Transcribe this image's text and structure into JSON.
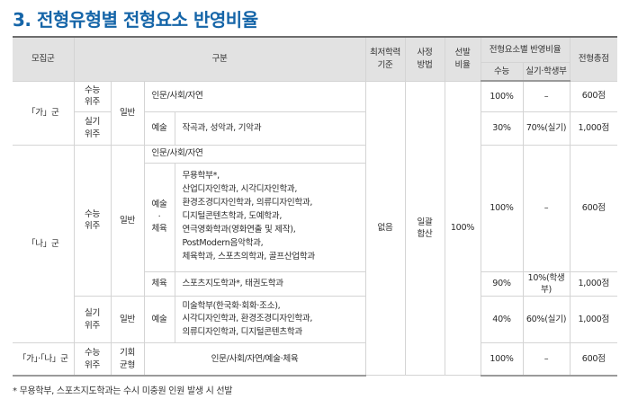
{
  "heading": "3. 전형유형별 전형요소 반영비율",
  "header": {
    "recruit_group": "모집군",
    "category": "구분",
    "min_standard": [
      "최저학력",
      "기준"
    ],
    "assessment": [
      "사정",
      "방법"
    ],
    "selection_ratio": [
      "선발",
      "비율"
    ],
    "element_ratio": "전형요소별 반영비율",
    "suneung": "수능",
    "practical": "실기·학생부",
    "total": "전형총점"
  },
  "ga": {
    "group": "「가」군",
    "suneung_type": [
      "수능",
      "위주"
    ],
    "practical_type": [
      "실기",
      "위주"
    ],
    "general": "일반",
    "humanities": "인문/사회/자연",
    "humanities_suneung": "100%",
    "humanities_practical": "–",
    "humanities_total": "600점",
    "arts_label": "예술",
    "arts_depts": "작곡과, 성악과, 기악과",
    "arts_suneung": "30%",
    "arts_practical": "70%(실기)",
    "arts_total": "1,000점"
  },
  "na": {
    "group": "「나」군",
    "suneung_type": [
      "수능",
      "위주"
    ],
    "general": "일반",
    "humanities": "인문/사회/자연",
    "arts_pe_label": [
      "예술",
      "·",
      "체육"
    ],
    "arts_pe_depts": [
      "무용학부*,",
      "산업디자인학과, 시각디자인학과,",
      "환경조경디자인학과, 의류디자인학과,",
      "디지털콘텐츠학과, 도예학과,",
      "연극영화학과(영화연출 및 제작),",
      "PostModern음악학과,",
      "체육학과, 스포츠의학과, 골프산업학과"
    ],
    "suneung_ratio": "100%",
    "practical_ratio": "–",
    "total": "600점",
    "pe_label": "체육",
    "pe_depts": "스포츠지도학과*, 태권도학과",
    "pe_suneung": "90%",
    "pe_practical": "10%(학생부)",
    "pe_total": "1,000점",
    "practical_type": [
      "실기",
      "위주"
    ],
    "arts2_label": "예술",
    "arts2_depts": [
      "미술학부(한국화·회화·조소),",
      "시각디자인학과, 환경조경디자인학과,",
      "의류디자인학과, 디지털콘텐츠학과"
    ],
    "arts2_suneung": "40%",
    "arts2_practical": "60%(실기)",
    "arts2_total": "1,000점"
  },
  "common": {
    "min_standard": "없음",
    "assessment": [
      "일괄",
      "합산"
    ],
    "selection": "100%"
  },
  "gana": {
    "group": "「가」·「나」군",
    "suneung_type": [
      "수능",
      "위주"
    ],
    "balanced": [
      "기회",
      "균형"
    ],
    "category": "인문/사회/자연/예술·체육",
    "suneung": "100%",
    "practical": "–",
    "total": "600점"
  },
  "footnote": "* 무용학부, 스포츠지도학과는 수시 미충원 인원 발생 시 선발"
}
